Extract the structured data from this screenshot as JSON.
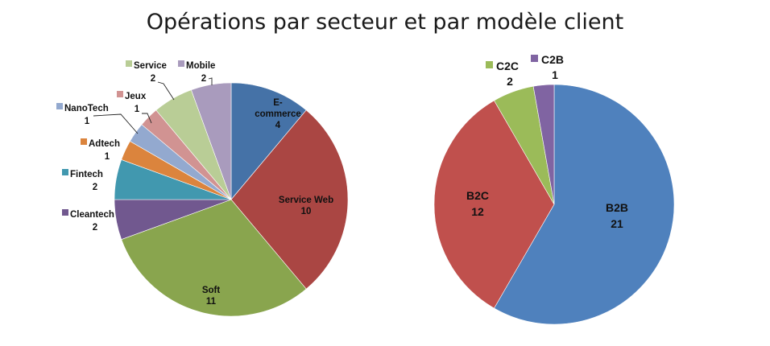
{
  "title": "Opérations par secteur et par modèle client",
  "chart_data": [
    {
      "type": "pie",
      "name": "",
      "categories": [
        "E-commerce",
        "Service Web",
        "Soft",
        "Cleantech",
        "Fintech",
        "Adtech",
        "NanoTech",
        "Jeux",
        "Service",
        "Mobile"
      ],
      "values": [
        4,
        10,
        11,
        2,
        2,
        1,
        1,
        1,
        2,
        2
      ],
      "label_lines": [
        [
          "E-",
          "commerce"
        ],
        [
          "Service Web"
        ],
        [
          "Soft"
        ],
        [
          "Cleantech"
        ],
        [
          "Fintech"
        ],
        [
          "Adtech"
        ],
        [
          "NanoTech"
        ],
        [
          "Jeux"
        ],
        [
          "Service"
        ],
        [
          "Mobile"
        ]
      ],
      "colors": [
        "#4572a7",
        "#aa4643",
        "#89a54e",
        "#71588f",
        "#4198af",
        "#db843d",
        "#93a9cf",
        "#d19392",
        "#b9cd96",
        "#a99bbd"
      ],
      "start_angle_deg": 0,
      "direction": "clockwise"
    },
    {
      "type": "pie",
      "name": "",
      "categories": [
        "B2B",
        "B2C",
        "C2C",
        "C2B"
      ],
      "values": [
        21,
        12,
        2,
        1
      ],
      "colors": [
        "#4f81bd",
        "#c0504d",
        "#9bbb59",
        "#8064a2"
      ],
      "start_angle_deg": 0,
      "direction": "clockwise"
    }
  ]
}
